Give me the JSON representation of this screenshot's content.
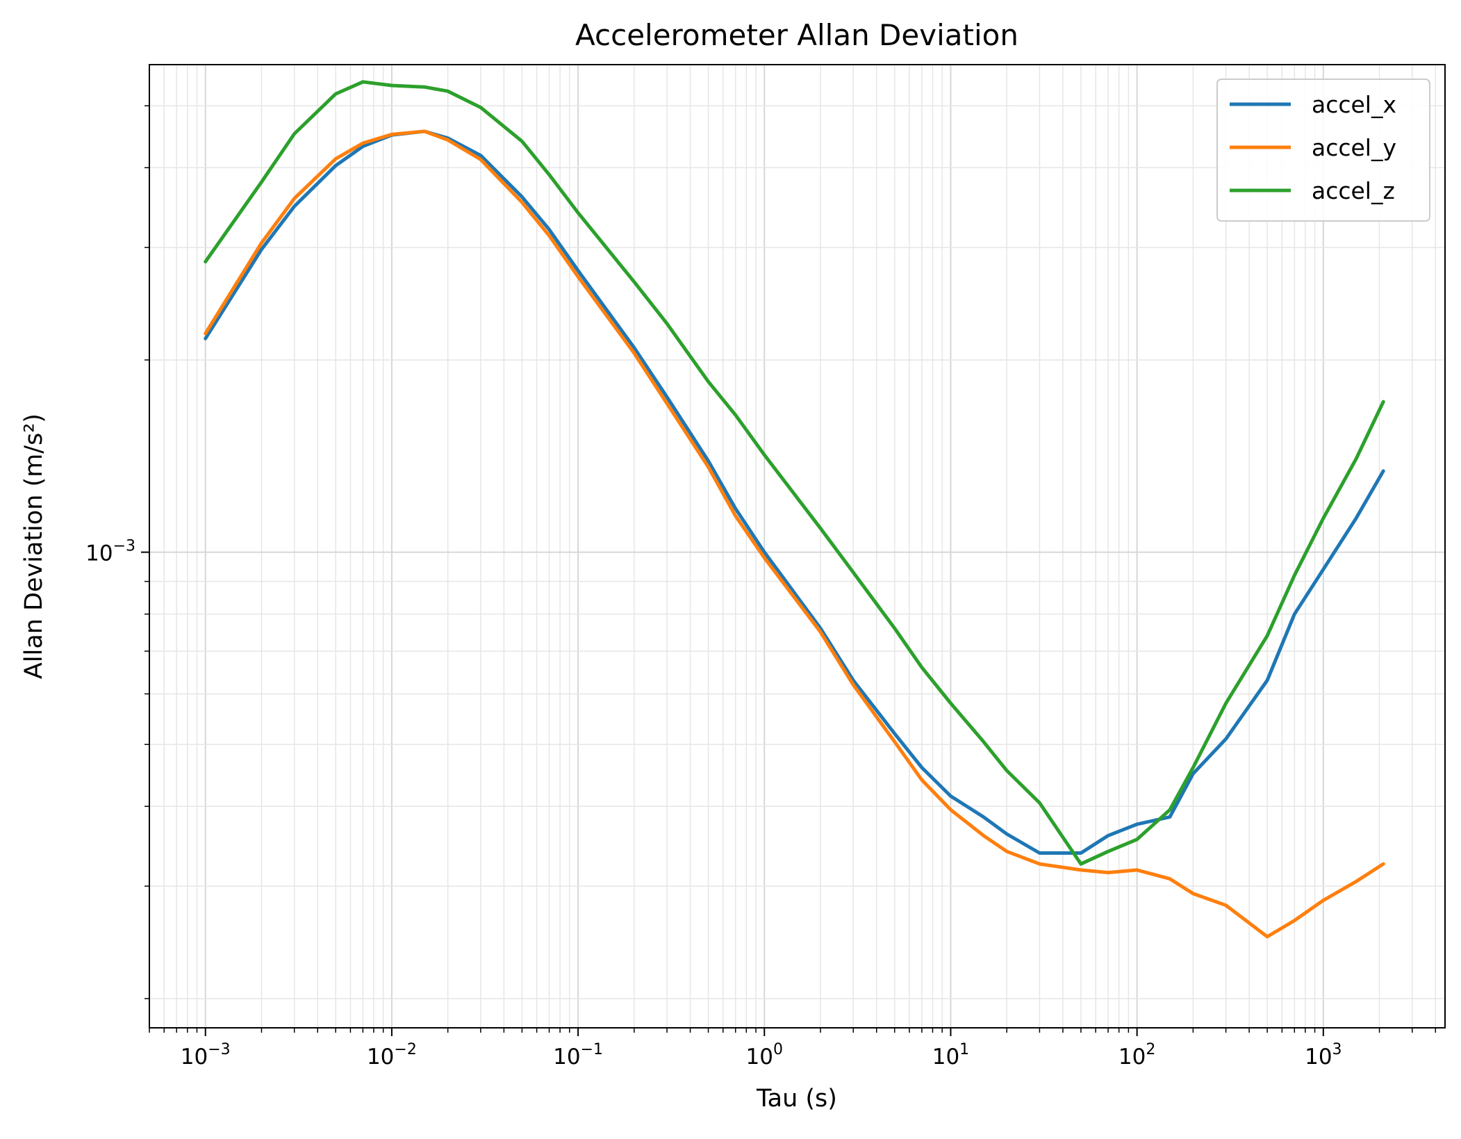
{
  "chart_data": {
    "type": "line",
    "title": "Accelerometer Allan Deviation",
    "xlabel": "Tau (s)",
    "ylabel": "Allan Deviation (m/s²)",
    "x_scale": "log",
    "y_scale": "log",
    "xlim": [
      0.0005,
      4500
    ],
    "ylim": [
      0.00018,
      0.0058
    ],
    "grid": true,
    "legend_position": "top-right",
    "x_ticks": [
      {
        "value": 0.001,
        "base": "10",
        "exp": "−3"
      },
      {
        "value": 0.01,
        "base": "10",
        "exp": "−2"
      },
      {
        "value": 0.1,
        "base": "10",
        "exp": "−1"
      },
      {
        "value": 1,
        "base": "10",
        "exp": "0"
      },
      {
        "value": 10,
        "base": "10",
        "exp": "1"
      },
      {
        "value": 100,
        "base": "10",
        "exp": "2"
      },
      {
        "value": 1000,
        "base": "10",
        "exp": "3"
      }
    ],
    "y_ticks": [
      {
        "value": 0.001,
        "base": "10",
        "exp": "−3"
      }
    ],
    "series": [
      {
        "name": "accel_x",
        "color": "#1f77b4",
        "points": [
          [
            0.001,
            0.00216
          ],
          [
            0.002,
            0.00298
          ],
          [
            0.003,
            0.00348
          ],
          [
            0.005,
            0.00403
          ],
          [
            0.007,
            0.00432
          ],
          [
            0.01,
            0.0045
          ],
          [
            0.015,
            0.00456
          ],
          [
            0.02,
            0.00445
          ],
          [
            0.03,
            0.00418
          ],
          [
            0.05,
            0.0036
          ],
          [
            0.07,
            0.0032
          ],
          [
            0.1,
            0.00276
          ],
          [
            0.2,
            0.00209
          ],
          [
            0.3,
            0.00175
          ],
          [
            0.5,
            0.00139
          ],
          [
            0.7,
            0.00117
          ],
          [
            1,
            0.001
          ],
          [
            2,
            0.00076
          ],
          [
            3,
            0.00063
          ],
          [
            5,
            0.00052
          ],
          [
            7,
            0.00046
          ],
          [
            10,
            0.000415
          ],
          [
            15,
            0.000385
          ],
          [
            20,
            0.000362
          ],
          [
            30,
            0.000338
          ],
          [
            50,
            0.000338
          ],
          [
            70,
            0.00036
          ],
          [
            100,
            0.000375
          ],
          [
            150,
            0.000385
          ],
          [
            200,
            0.00045
          ],
          [
            300,
            0.00051
          ],
          [
            500,
            0.00063
          ],
          [
            700,
            0.0008
          ],
          [
            1000,
            0.00094
          ],
          [
            1500,
            0.00113
          ],
          [
            2100,
            0.00134
          ]
        ]
      },
      {
        "name": "accel_y",
        "color": "#ff7f0e",
        "points": [
          [
            0.001,
            0.0022
          ],
          [
            0.002,
            0.00305
          ],
          [
            0.003,
            0.00358
          ],
          [
            0.005,
            0.00413
          ],
          [
            0.007,
            0.00437
          ],
          [
            0.01,
            0.00451
          ],
          [
            0.015,
            0.00456
          ],
          [
            0.02,
            0.00442
          ],
          [
            0.03,
            0.00412
          ],
          [
            0.05,
            0.00353
          ],
          [
            0.07,
            0.00313
          ],
          [
            0.1,
            0.0027
          ],
          [
            0.2,
            0.00205
          ],
          [
            0.3,
            0.00171
          ],
          [
            0.5,
            0.00136
          ],
          [
            0.7,
            0.00114
          ],
          [
            1,
            0.00098
          ],
          [
            2,
            0.00075
          ],
          [
            3,
            0.00062
          ],
          [
            5,
            0.000505
          ],
          [
            7,
            0.00044
          ],
          [
            10,
            0.000395
          ],
          [
            15,
            0.00036
          ],
          [
            20,
            0.00034
          ],
          [
            30,
            0.000325
          ],
          [
            50,
            0.000318
          ],
          [
            70,
            0.000315
          ],
          [
            100,
            0.000318
          ],
          [
            150,
            0.000308
          ],
          [
            200,
            0.000292
          ],
          [
            300,
            0.00028
          ],
          [
            500,
            0.00025
          ],
          [
            700,
            0.000265
          ],
          [
            1000,
            0.000285
          ],
          [
            1500,
            0.000305
          ],
          [
            2100,
            0.000325
          ]
        ]
      },
      {
        "name": "accel_z",
        "color": "#2ca02c",
        "points": [
          [
            0.001,
            0.00285
          ],
          [
            0.002,
            0.0038
          ],
          [
            0.003,
            0.00452
          ],
          [
            0.005,
            0.00522
          ],
          [
            0.007,
            0.00545
          ],
          [
            0.01,
            0.00538
          ],
          [
            0.015,
            0.00535
          ],
          [
            0.02,
            0.00527
          ],
          [
            0.03,
            0.00497
          ],
          [
            0.05,
            0.0044
          ],
          [
            0.07,
            0.0039
          ],
          [
            0.1,
            0.0034
          ],
          [
            0.2,
            0.00265
          ],
          [
            0.3,
            0.00228
          ],
          [
            0.5,
            0.00185
          ],
          [
            0.7,
            0.00164
          ],
          [
            1,
            0.00142
          ],
          [
            2,
            0.00109
          ],
          [
            3,
            0.00093
          ],
          [
            5,
            0.00076
          ],
          [
            7,
            0.00066
          ],
          [
            10,
            0.00058
          ],
          [
            15,
            0.000505
          ],
          [
            20,
            0.000455
          ],
          [
            30,
            0.000405
          ],
          [
            50,
            0.000325
          ],
          [
            70,
            0.00034
          ],
          [
            100,
            0.000355
          ],
          [
            150,
            0.000395
          ],
          [
            200,
            0.00046
          ],
          [
            300,
            0.00058
          ],
          [
            500,
            0.00074
          ],
          [
            700,
            0.00092
          ],
          [
            1000,
            0.00113
          ],
          [
            1500,
            0.0014
          ],
          [
            2100,
            0.00172
          ]
        ]
      }
    ]
  }
}
